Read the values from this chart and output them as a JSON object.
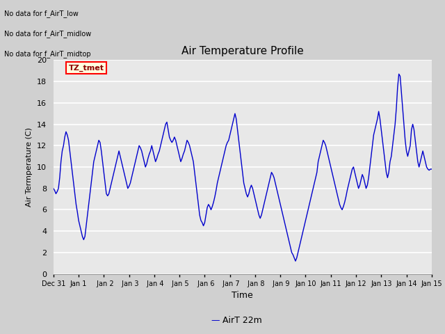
{
  "title": "Air Temperature Profile",
  "xlabel": "Time",
  "ylabel": "Air Termperature (C)",
  "legend_label": "AirT 22m",
  "legend_color": "#0000cc",
  "line_color": "#0000cc",
  "ylim": [
    0,
    20
  ],
  "yticks": [
    0,
    2,
    4,
    6,
    8,
    10,
    12,
    14,
    16,
    18,
    20
  ],
  "annotations": [
    "No data for f_AirT_low",
    "No data for f_AirT_midlow",
    "No data for f_AirT_midtop"
  ],
  "tz_label": "TZ_tmet",
  "x_tick_labels": [
    "Dec 31",
    "Jan 1",
    " Jan 2",
    " Jan 3",
    " Jan 4",
    " Jan 5",
    " Jan 6",
    " Jan 7",
    " Jan 8",
    " Jan 9",
    "Jan 10",
    "Jan 11",
    "Jan 12",
    "Jan 13",
    "Jan 14",
    "Jan 15"
  ],
  "temp_data": [
    [
      0.0,
      8.0
    ],
    [
      0.05,
      7.8
    ],
    [
      0.1,
      7.5
    ],
    [
      0.15,
      7.7
    ],
    [
      0.2,
      8.0
    ],
    [
      0.25,
      9.0
    ],
    [
      0.3,
      10.5
    ],
    [
      0.35,
      11.5
    ],
    [
      0.4,
      12.0
    ],
    [
      0.45,
      12.8
    ],
    [
      0.5,
      13.3
    ],
    [
      0.55,
      13.0
    ],
    [
      0.6,
      12.5
    ],
    [
      0.65,
      11.5
    ],
    [
      0.7,
      10.5
    ],
    [
      0.75,
      9.5
    ],
    [
      0.8,
      8.5
    ],
    [
      0.85,
      7.5
    ],
    [
      0.9,
      6.5
    ],
    [
      0.95,
      5.8
    ],
    [
      1.0,
      5.0
    ],
    [
      1.05,
      4.5
    ],
    [
      1.1,
      4.0
    ],
    [
      1.15,
      3.5
    ],
    [
      1.2,
      3.2
    ],
    [
      1.25,
      3.5
    ],
    [
      1.3,
      4.5
    ],
    [
      1.35,
      5.5
    ],
    [
      1.4,
      6.5
    ],
    [
      1.45,
      7.5
    ],
    [
      1.5,
      8.5
    ],
    [
      1.55,
      9.5
    ],
    [
      1.6,
      10.5
    ],
    [
      1.65,
      11.0
    ],
    [
      1.7,
      11.5
    ],
    [
      1.75,
      12.0
    ],
    [
      1.8,
      12.5
    ],
    [
      1.85,
      12.3
    ],
    [
      1.9,
      11.5
    ],
    [
      1.95,
      10.5
    ],
    [
      2.0,
      9.5
    ],
    [
      2.05,
      8.5
    ],
    [
      2.1,
      7.5
    ],
    [
      2.15,
      7.3
    ],
    [
      2.2,
      7.5
    ],
    [
      2.25,
      8.0
    ],
    [
      2.3,
      8.5
    ],
    [
      2.35,
      9.0
    ],
    [
      2.4,
      9.5
    ],
    [
      2.45,
      10.0
    ],
    [
      2.5,
      10.5
    ],
    [
      2.55,
      11.0
    ],
    [
      2.6,
      11.5
    ],
    [
      2.65,
      11.0
    ],
    [
      2.7,
      10.5
    ],
    [
      2.75,
      10.0
    ],
    [
      2.8,
      9.5
    ],
    [
      2.85,
      9.0
    ],
    [
      2.9,
      8.5
    ],
    [
      2.95,
      8.0
    ],
    [
      3.0,
      8.2
    ],
    [
      3.05,
      8.5
    ],
    [
      3.1,
      9.0
    ],
    [
      3.15,
      9.5
    ],
    [
      3.2,
      10.0
    ],
    [
      3.25,
      10.5
    ],
    [
      3.3,
      11.0
    ],
    [
      3.35,
      11.5
    ],
    [
      3.4,
      12.0
    ],
    [
      3.45,
      11.8
    ],
    [
      3.5,
      11.5
    ],
    [
      3.55,
      11.0
    ],
    [
      3.6,
      10.5
    ],
    [
      3.65,
      10.0
    ],
    [
      3.7,
      10.3
    ],
    [
      3.75,
      10.8
    ],
    [
      3.8,
      11.2
    ],
    [
      3.85,
      11.5
    ],
    [
      3.9,
      12.0
    ],
    [
      3.95,
      11.5
    ],
    [
      4.0,
      11.0
    ],
    [
      4.05,
      10.5
    ],
    [
      4.1,
      10.8
    ],
    [
      4.15,
      11.2
    ],
    [
      4.2,
      11.5
    ],
    [
      4.25,
      12.0
    ],
    [
      4.3,
      12.5
    ],
    [
      4.35,
      13.0
    ],
    [
      4.4,
      13.5
    ],
    [
      4.45,
      14.0
    ],
    [
      4.5,
      14.2
    ],
    [
      4.55,
      13.5
    ],
    [
      4.6,
      12.8
    ],
    [
      4.65,
      12.5
    ],
    [
      4.7,
      12.3
    ],
    [
      4.75,
      12.5
    ],
    [
      4.8,
      12.8
    ],
    [
      4.85,
      12.5
    ],
    [
      4.9,
      12.0
    ],
    [
      4.95,
      11.5
    ],
    [
      5.0,
      11.0
    ],
    [
      5.05,
      10.5
    ],
    [
      5.1,
      10.8
    ],
    [
      5.15,
      11.2
    ],
    [
      5.2,
      11.5
    ],
    [
      5.25,
      12.0
    ],
    [
      5.3,
      12.5
    ],
    [
      5.35,
      12.3
    ],
    [
      5.4,
      12.0
    ],
    [
      5.45,
      11.5
    ],
    [
      5.5,
      11.0
    ],
    [
      5.55,
      10.5
    ],
    [
      5.6,
      9.5
    ],
    [
      5.65,
      8.5
    ],
    [
      5.7,
      7.5
    ],
    [
      5.75,
      6.5
    ],
    [
      5.8,
      5.5
    ],
    [
      5.85,
      5.0
    ],
    [
      5.9,
      4.8
    ],
    [
      5.95,
      4.5
    ],
    [
      6.0,
      4.8
    ],
    [
      6.05,
      5.5
    ],
    [
      6.1,
      6.2
    ],
    [
      6.15,
      6.5
    ],
    [
      6.2,
      6.3
    ],
    [
      6.25,
      6.0
    ],
    [
      6.3,
      6.3
    ],
    [
      6.35,
      6.7
    ],
    [
      6.4,
      7.2
    ],
    [
      6.45,
      7.8
    ],
    [
      6.5,
      8.5
    ],
    [
      6.55,
      9.0
    ],
    [
      6.6,
      9.5
    ],
    [
      6.65,
      10.0
    ],
    [
      6.7,
      10.5
    ],
    [
      6.75,
      11.0
    ],
    [
      6.8,
      11.5
    ],
    [
      6.85,
      12.0
    ],
    [
      6.9,
      12.3
    ],
    [
      6.95,
      12.5
    ],
    [
      7.0,
      13.0
    ],
    [
      7.05,
      13.5
    ],
    [
      7.1,
      14.0
    ],
    [
      7.15,
      14.5
    ],
    [
      7.2,
      15.0
    ],
    [
      7.25,
      14.5
    ],
    [
      7.3,
      13.5
    ],
    [
      7.35,
      12.5
    ],
    [
      7.4,
      11.5
    ],
    [
      7.45,
      10.5
    ],
    [
      7.5,
      9.5
    ],
    [
      7.55,
      8.5
    ],
    [
      7.6,
      8.0
    ],
    [
      7.65,
      7.5
    ],
    [
      7.7,
      7.2
    ],
    [
      7.75,
      7.5
    ],
    [
      7.8,
      8.0
    ],
    [
      7.85,
      8.3
    ],
    [
      7.9,
      8.0
    ],
    [
      7.95,
      7.5
    ],
    [
      8.0,
      7.0
    ],
    [
      8.05,
      6.5
    ],
    [
      8.1,
      6.0
    ],
    [
      8.15,
      5.5
    ],
    [
      8.2,
      5.2
    ],
    [
      8.25,
      5.5
    ],
    [
      8.3,
      6.0
    ],
    [
      8.35,
      6.5
    ],
    [
      8.4,
      7.0
    ],
    [
      8.45,
      7.5
    ],
    [
      8.5,
      8.0
    ],
    [
      8.55,
      8.5
    ],
    [
      8.6,
      9.0
    ],
    [
      8.65,
      9.5
    ],
    [
      8.7,
      9.3
    ],
    [
      8.75,
      9.0
    ],
    [
      8.8,
      8.5
    ],
    [
      8.85,
      8.0
    ],
    [
      8.9,
      7.5
    ],
    [
      8.95,
      7.0
    ],
    [
      9.0,
      6.5
    ],
    [
      9.05,
      6.0
    ],
    [
      9.1,
      5.5
    ],
    [
      9.15,
      5.0
    ],
    [
      9.2,
      4.5
    ],
    [
      9.25,
      4.0
    ],
    [
      9.3,
      3.5
    ],
    [
      9.35,
      3.0
    ],
    [
      9.4,
      2.5
    ],
    [
      9.45,
      2.0
    ],
    [
      9.5,
      1.8
    ],
    [
      9.55,
      1.5
    ],
    [
      9.6,
      1.2
    ],
    [
      9.65,
      1.5
    ],
    [
      9.7,
      2.0
    ],
    [
      9.75,
      2.5
    ],
    [
      9.8,
      3.0
    ],
    [
      9.85,
      3.5
    ],
    [
      9.9,
      4.0
    ],
    [
      9.95,
      4.5
    ],
    [
      10.0,
      5.0
    ],
    [
      10.05,
      5.5
    ],
    [
      10.1,
      6.0
    ],
    [
      10.15,
      6.5
    ],
    [
      10.2,
      7.0
    ],
    [
      10.25,
      7.5
    ],
    [
      10.3,
      8.0
    ],
    [
      10.35,
      8.5
    ],
    [
      10.4,
      9.0
    ],
    [
      10.45,
      9.5
    ],
    [
      10.5,
      10.5
    ],
    [
      10.55,
      11.0
    ],
    [
      10.6,
      11.5
    ],
    [
      10.65,
      12.0
    ],
    [
      10.7,
      12.5
    ],
    [
      10.75,
      12.3
    ],
    [
      10.8,
      12.0
    ],
    [
      10.85,
      11.5
    ],
    [
      10.9,
      11.0
    ],
    [
      10.95,
      10.5
    ],
    [
      11.0,
      10.0
    ],
    [
      11.05,
      9.5
    ],
    [
      11.1,
      9.0
    ],
    [
      11.15,
      8.5
    ],
    [
      11.2,
      8.0
    ],
    [
      11.25,
      7.5
    ],
    [
      11.3,
      7.0
    ],
    [
      11.35,
      6.5
    ],
    [
      11.4,
      6.2
    ],
    [
      11.45,
      6.0
    ],
    [
      11.5,
      6.3
    ],
    [
      11.55,
      6.7
    ],
    [
      11.6,
      7.2
    ],
    [
      11.65,
      7.8
    ],
    [
      11.7,
      8.3
    ],
    [
      11.75,
      8.8
    ],
    [
      11.8,
      9.3
    ],
    [
      11.85,
      9.8
    ],
    [
      11.9,
      10.0
    ],
    [
      11.95,
      9.5
    ],
    [
      12.0,
      9.0
    ],
    [
      12.05,
      8.5
    ],
    [
      12.1,
      8.0
    ],
    [
      12.15,
      8.3
    ],
    [
      12.2,
      8.8
    ],
    [
      12.25,
      9.3
    ],
    [
      12.3,
      9.0
    ],
    [
      12.35,
      8.5
    ],
    [
      12.4,
      8.0
    ],
    [
      12.45,
      8.3
    ],
    [
      12.5,
      9.0
    ],
    [
      12.55,
      10.0
    ],
    [
      12.6,
      11.0
    ],
    [
      12.65,
      12.0
    ],
    [
      12.7,
      13.0
    ],
    [
      12.75,
      13.5
    ],
    [
      12.8,
      14.0
    ],
    [
      12.85,
      14.5
    ],
    [
      12.9,
      15.2
    ],
    [
      12.95,
      14.5
    ],
    [
      13.0,
      13.5
    ],
    [
      13.05,
      12.5
    ],
    [
      13.1,
      11.5
    ],
    [
      13.15,
      10.5
    ],
    [
      13.2,
      9.5
    ],
    [
      13.25,
      9.0
    ],
    [
      13.3,
      9.5
    ],
    [
      13.35,
      10.5
    ],
    [
      13.4,
      11.0
    ],
    [
      13.45,
      12.0
    ],
    [
      13.5,
      13.0
    ],
    [
      13.55,
      14.0
    ],
    [
      13.6,
      15.5
    ],
    [
      13.65,
      17.5
    ],
    [
      13.7,
      18.7
    ],
    [
      13.75,
      18.5
    ],
    [
      13.8,
      17.0
    ],
    [
      13.85,
      15.5
    ],
    [
      13.9,
      14.0
    ],
    [
      13.95,
      12.5
    ],
    [
      14.0,
      11.5
    ],
    [
      14.05,
      11.0
    ],
    [
      14.1,
      11.5
    ],
    [
      14.15,
      12.0
    ],
    [
      14.2,
      13.5
    ],
    [
      14.25,
      14.0
    ],
    [
      14.3,
      13.5
    ],
    [
      14.35,
      12.5
    ],
    [
      14.4,
      11.5
    ],
    [
      14.45,
      10.5
    ],
    [
      14.5,
      10.0
    ],
    [
      14.55,
      10.5
    ],
    [
      14.6,
      11.0
    ],
    [
      14.65,
      11.5
    ],
    [
      14.7,
      11.0
    ],
    [
      14.75,
      10.5
    ],
    [
      14.8,
      10.0
    ],
    [
      14.85,
      9.8
    ],
    [
      14.9,
      9.7
    ],
    [
      14.95,
      9.8
    ],
    [
      15.0,
      9.8
    ]
  ]
}
